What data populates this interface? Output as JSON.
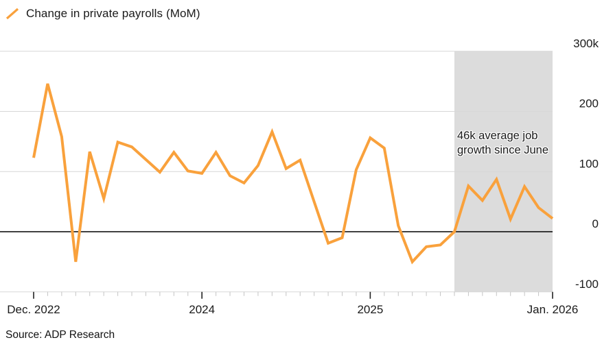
{
  "legend": {
    "label": "Change in private payrolls (MoM)"
  },
  "annotation": {
    "line1": "46k average job",
    "line2": "growth since June"
  },
  "source": {
    "text": "Source: ADP Research"
  },
  "colors": {
    "line": "#F9A13C",
    "band": "#DCDCDC",
    "grid": "#D7D7D7",
    "zero_line": "#000000",
    "text": "#1a1a1a",
    "minor_tick": "#C4C4C4",
    "major_tick": "#222222"
  },
  "chart_data": {
    "type": "line",
    "title": "Change in private payrolls (MoM)",
    "unit": "thousands of jobs, month-over-month",
    "x": [
      "Dec 2022",
      "Jan 2023",
      "Feb 2023",
      "Mar 2023",
      "Apr 2023",
      "May 2023",
      "Jun 2023",
      "Jul 2023",
      "Aug 2023",
      "Sep 2023",
      "Oct 2023",
      "Nov 2023",
      "Dec 2023",
      "Jan 2024",
      "Feb 2024",
      "Mar 2024",
      "Apr 2024",
      "May 2024",
      "Jun 2024",
      "Jul 2024",
      "Aug 2024",
      "Sep 2024",
      "Oct 2024",
      "Nov 2024",
      "Dec 2024",
      "Jan 2025",
      "Feb 2025",
      "Mar 2025",
      "Apr 2025",
      "May 2025",
      "Jun 2025",
      "Jul 2025",
      "Aug 2025",
      "Sep 2025",
      "Oct 2025",
      "Nov 2025",
      "Dec 2025",
      "Jan 2026"
    ],
    "values": [
      123,
      246,
      158,
      -50,
      133,
      55,
      149,
      141,
      120,
      99,
      132,
      101,
      97,
      132,
      93,
      81,
      110,
      166,
      105,
      119,
      50,
      -19,
      -10,
      103,
      156,
      139,
      10,
      -50,
      -25,
      -22,
      0,
      76,
      52,
      87,
      21,
      75,
      40,
      22
    ],
    "y_ticks": [
      {
        "label": "300k",
        "value": 300
      },
      {
        "label": "200",
        "value": 200
      },
      {
        "label": "100",
        "value": 100
      },
      {
        "label": "0",
        "value": 0
      },
      {
        "label": "-100",
        "value": -100
      }
    ],
    "x_ticks": [
      {
        "label": "Dec. 2022",
        "month_index": 0
      },
      {
        "label": "2024",
        "month_index": 12
      },
      {
        "label": "2025",
        "month_index": 24
      },
      {
        "label": "Jan. 2026",
        "month_index": 37
      }
    ],
    "ylim": [
      -150,
      300
    ],
    "grid": true,
    "legend_position": "top-left",
    "highlight_band": {
      "start_month_index": 30,
      "end_month_index": 37,
      "note": "46k average job growth since June"
    }
  }
}
